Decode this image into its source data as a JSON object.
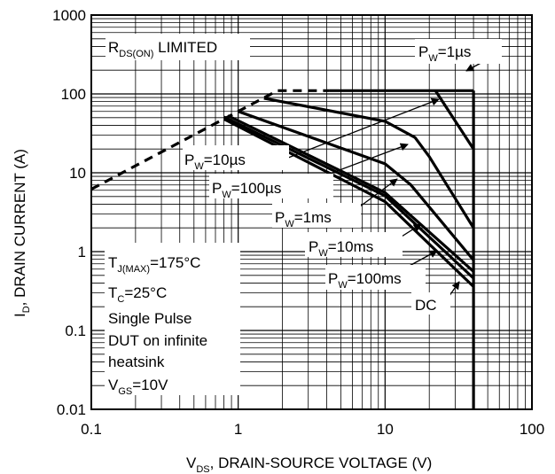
{
  "chart_data": {
    "type": "line",
    "x_axis": {
      "label": {
        "main": "V",
        "sub": "DS",
        "rest": ", DRAIN-SOURCE VOLTAGE (V)"
      },
      "scale": "log",
      "range": [
        0.1,
        100
      ],
      "ticks": [
        {
          "value": 0.1,
          "label": "0.1"
        },
        {
          "value": 1,
          "label": "1"
        },
        {
          "value": 10,
          "label": "10"
        },
        {
          "value": 100,
          "label": "100"
        }
      ]
    },
    "y_axis": {
      "label": {
        "main": "I",
        "sub": "D",
        "rest": ", DRAIN CURRENT (A)"
      },
      "scale": "log",
      "range": [
        0.01,
        1000
      ],
      "ticks": [
        {
          "value": 1000,
          "label": "1000"
        },
        {
          "value": 100,
          "label": "100"
        },
        {
          "value": 10,
          "label": "10"
        },
        {
          "value": 1,
          "label": "1"
        },
        {
          "value": 0.1,
          "label": "0.1"
        },
        {
          "value": 0.01,
          "label": "0.01"
        }
      ]
    },
    "grid": true,
    "rds_limit": {
      "label": {
        "main": "R",
        "sub": "DS(ON)",
        "rest": " LIMITED"
      },
      "style": "dashed",
      "points": [
        [
          0.1,
          6.2
        ],
        [
          1.85,
          110
        ],
        [
          4.2,
          110
        ]
      ]
    },
    "current_limit": {
      "points": [
        [
          4.2,
          110
        ],
        [
          40,
          110
        ]
      ]
    },
    "voltage_limit": {
      "points": [
        [
          40,
          110
        ],
        [
          40,
          0.01
        ]
      ]
    },
    "series": [
      {
        "name": "P_W=1µs",
        "label": {
          "main": "P",
          "sub": "W",
          "rest": "=1µs"
        },
        "points": [
          [
            22,
            110
          ],
          [
            40,
            20
          ]
        ]
      },
      {
        "name": "P_W=10µs",
        "label": {
          "main": "P",
          "sub": "W",
          "rest": "=10µs"
        },
        "points": [
          [
            1.5,
            88
          ],
          [
            10,
            45
          ],
          [
            16,
            28
          ],
          [
            20,
            16
          ],
          [
            40,
            2
          ]
        ]
      },
      {
        "name": "P_W=100µs",
        "label": {
          "main": "P",
          "sub": "W",
          "rest": "=100µs"
        },
        "points": [
          [
            1.0,
            60
          ],
          [
            10,
            13
          ],
          [
            15,
            7
          ],
          [
            40,
            0.78
          ]
        ]
      },
      {
        "name": "P_W=1ms",
        "label": {
          "main": "P",
          "sub": "W",
          "rest": "=1ms"
        },
        "points": [
          [
            0.85,
            53
          ],
          [
            10,
            5.6
          ],
          [
            40,
            0.56
          ]
        ]
      },
      {
        "name": "P_W=10ms",
        "label": {
          "main": "P",
          "sub": "W",
          "rest": "=10ms"
        },
        "points": [
          [
            0.8,
            51
          ],
          [
            10,
            5.1
          ],
          [
            40,
            0.46
          ]
        ]
      },
      {
        "name": "P_W=100ms",
        "label": {
          "main": "P",
          "sub": "W",
          "rest": "=100ms"
        },
        "points": [
          [
            0.8,
            48
          ],
          [
            10,
            4.3
          ],
          [
            40,
            0.36
          ]
        ]
      },
      {
        "name": "DC",
        "label": {
          "main": "DC",
          "sub": "",
          "rest": ""
        },
        "points": [
          [
            0.8,
            48
          ],
          [
            10,
            4.3
          ],
          [
            40,
            0.36
          ]
        ]
      }
    ],
    "annotation": {
      "lines": [
        {
          "main": "T",
          "sub": "J(MAX)",
          "rest": "=175°C"
        },
        {
          "main": "T",
          "sub": "C",
          "rest": "=25°C"
        },
        {
          "main": "Single Pulse",
          "sub": "",
          "rest": ""
        },
        {
          "main": "DUT on infinite",
          "sub": "",
          "rest": ""
        },
        {
          "main": "heatsink",
          "sub": "",
          "rest": ""
        },
        {
          "main": "V",
          "sub": "GS",
          "rest": "=10V"
        }
      ]
    }
  }
}
